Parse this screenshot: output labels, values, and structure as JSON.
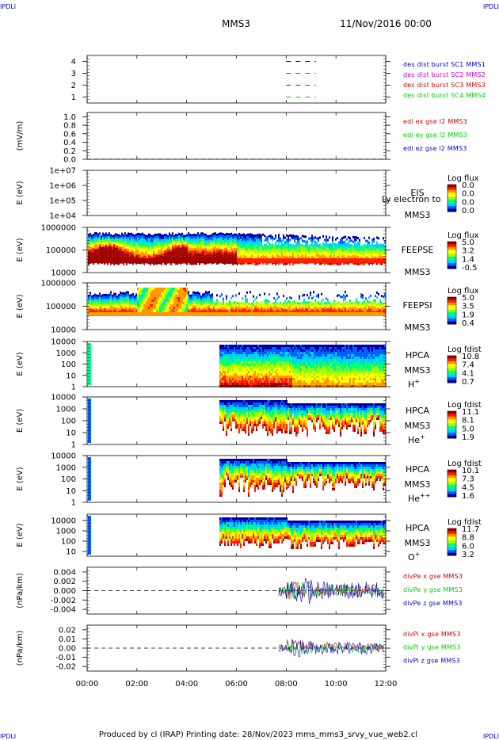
{
  "header": {
    "corner_tag": "IPDLI",
    "mission": "MMS3",
    "date": "11/Nov/2016 00:00"
  },
  "footer": {
    "text": "Produced by cl (IRAP)   Printing date: 28/Nov/2023   mms_mms3_srvy_vue_web2.cl"
  },
  "colors": {
    "red": "#cc0000",
    "magenta": "#cc00cc",
    "green": "#00cc00",
    "blue": "#0000cc",
    "colormap": [
      "#0000a0",
      "#0060ff",
      "#00ccff",
      "#00ff80",
      "#a0ff00",
      "#ffff00",
      "#ff9900",
      "#ff2000",
      "#a00000"
    ]
  },
  "chart_data": [
    {
      "type": "line",
      "ticks": [
        "1",
        "2",
        "3",
        "4"
      ],
      "ylim": [
        0.5,
        4.5
      ],
      "series": [
        {
          "name": "des dist burst SC1 MMS1",
          "color": "#0000cc",
          "y": 4,
          "segments": [
            [
              8.0,
              9.2
            ]
          ]
        },
        {
          "name": "des dist burst SC2 MMS2",
          "color": "#cc00cc",
          "y": 3,
          "segments": [
            [
              8.0,
              9.2
            ]
          ]
        },
        {
          "name": "des dist burst SC3 MMS3",
          "color": "#cc0000",
          "y": 2,
          "segments": [
            [
              8.0,
              9.2
            ]
          ]
        },
        {
          "name": "des dist burst SC4 MMS4",
          "color": "#00cc00",
          "y": 1,
          "segments": [
            [
              8.0,
              9.2
            ]
          ]
        }
      ]
    },
    {
      "type": "line",
      "ylabel": "(mV/m)",
      "ticks": [
        "1.0",
        "0.8",
        "0.6",
        "0.4",
        "0.2",
        "0.0"
      ],
      "ylim": [
        0.0,
        1.1
      ],
      "series": [
        {
          "name": "edi ex gse l2 MMS3",
          "color": "#cc0000"
        },
        {
          "name": "edi ey gse l2 MMS3",
          "color": "#00cc00"
        },
        {
          "name": "edi ez gse l2 MMS3",
          "color": "#0000cc"
        }
      ]
    },
    {
      "type": "heatmap",
      "ylabel": "E (eV)",
      "ticks": [
        "1e+07",
        "1e+06",
        "1e+05",
        "1e+04"
      ],
      "instrument": "EIS",
      "overlay": "Ly electron to",
      "mission": "MMS3",
      "colorbar_title": "Log flux",
      "colorbar_ticks": [
        "0.0",
        "0.0",
        "0.0",
        "0.0"
      ]
    },
    {
      "type": "heatmap",
      "ylabel": "E (eV)",
      "ticks": [
        "1000000",
        "100000",
        "10000"
      ],
      "instrument": "FEEPSE",
      "mission": "MMS3",
      "colorbar_title": "Log flux",
      "colorbar_ticks": [
        "5.0",
        "3.2",
        "1.4",
        "-0.5"
      ]
    },
    {
      "type": "heatmap",
      "ylabel": "E (eV)",
      "ticks": [
        "1000000",
        "100000",
        "10000"
      ],
      "instrument": "FEEPSI",
      "mission": "MMS3",
      "colorbar_title": "Log flux",
      "colorbar_ticks": [
        "5.0",
        "3.5",
        "1.9",
        "0.4"
      ]
    },
    {
      "type": "heatmap",
      "ylabel": "E (eV)",
      "ticks": [
        "10000",
        "1000",
        "100",
        "10",
        "1"
      ],
      "instrument": "HPCA",
      "mission": "MMS3",
      "species": "H",
      "charge": "+",
      "colorbar_title": "Log fdist",
      "colorbar_ticks": [
        "10.8",
        "7.4",
        "4.1",
        "0.7"
      ]
    },
    {
      "type": "heatmap",
      "ylabel": "E (eV)",
      "ticks": [
        "10000",
        "1000",
        "100",
        "10",
        "1"
      ],
      "instrument": "HPCA",
      "mission": "MMS3",
      "species": "He",
      "charge": "+",
      "colorbar_title": "Log fdist",
      "colorbar_ticks": [
        "11.1",
        "8.1",
        "5.0",
        "1.9"
      ]
    },
    {
      "type": "heatmap",
      "ylabel": "E (eV)",
      "ticks": [
        "10000",
        "1000",
        "100",
        "10",
        "1"
      ],
      "instrument": "HPCA",
      "mission": "MMS3",
      "species": "He",
      "charge": "++",
      "colorbar_title": "Log fdist",
      "colorbar_ticks": [
        "10.1",
        "7.3",
        "4.5",
        "1.6"
      ]
    },
    {
      "type": "heatmap",
      "ylabel": "E (eV)",
      "ticks": [
        "10000",
        "1000",
        "100",
        "10"
      ],
      "instrument": "HPCA",
      "mission": "MMS3",
      "species": "O",
      "charge": "+",
      "colorbar_title": "Log fdist",
      "colorbar_ticks": [
        "11.7",
        "8.8",
        "6.0",
        "3.2"
      ]
    },
    {
      "type": "line",
      "ylabel": "(nPa/km)",
      "ticks": [
        "0.004",
        "0.002",
        "0.000",
        "-0.002",
        "-0.004"
      ],
      "ylim": [
        -0.005,
        0.005
      ],
      "series": [
        {
          "name": "divPe x gse MMS3",
          "color": "#cc0000"
        },
        {
          "name": "divPe y gse MMS3",
          "color": "#00cc00"
        },
        {
          "name": "divPe z gse MMS3",
          "color": "#0000cc"
        }
      ]
    },
    {
      "type": "line",
      "ylabel": "(nPa/km)",
      "ticks": [
        "0.02",
        "0.01",
        "0.00",
        "-0.01",
        "-0.02"
      ],
      "ylim": [
        -0.025,
        0.025
      ],
      "series": [
        {
          "name": "divPi x gse MMS3",
          "color": "#cc0000"
        },
        {
          "name": "divPi y gse MMS3",
          "color": "#00cc00"
        },
        {
          "name": "divPi z gse MMS3",
          "color": "#0000cc"
        }
      ]
    }
  ],
  "time_axis": {
    "range_hours": [
      0,
      12
    ],
    "ticks": [
      "00:00",
      "02:00",
      "04:00",
      "06:00",
      "08:00",
      "10:00",
      "12:00"
    ]
  }
}
